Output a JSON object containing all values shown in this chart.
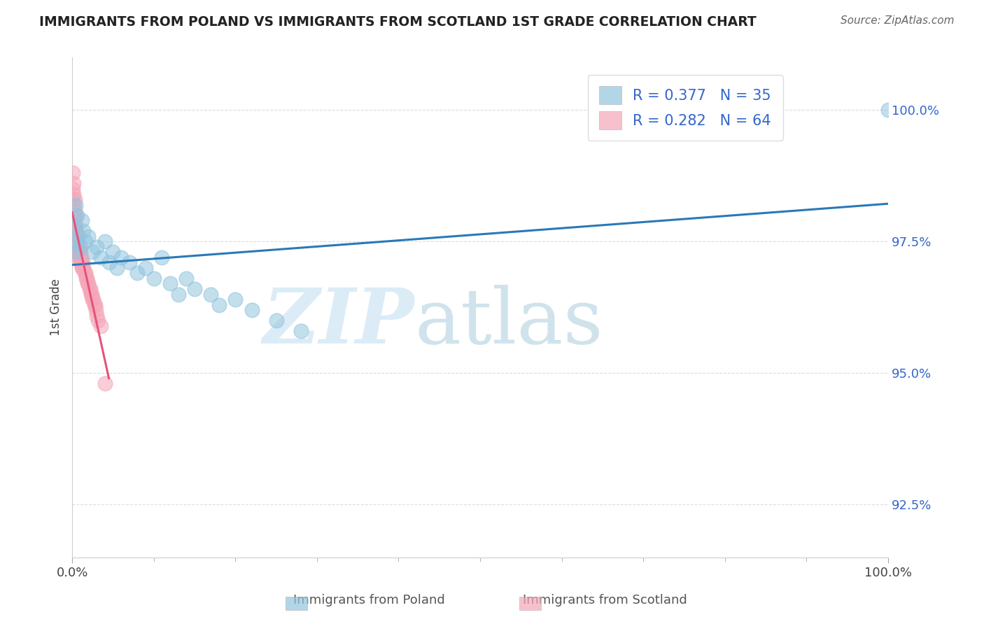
{
  "title": "IMMIGRANTS FROM POLAND VS IMMIGRANTS FROM SCOTLAND 1ST GRADE CORRELATION CHART",
  "source": "Source: ZipAtlas.com",
  "ylabel": "1st Grade",
  "poland_R": "R = 0.377",
  "poland_N": "N = 35",
  "scotland_R": "R = 0.282",
  "scotland_N": "N = 64",
  "poland_color": "#92c5de",
  "scotland_color": "#f4a6b8",
  "poland_line_color": "#2979b9",
  "scotland_line_color": "#e8527a",
  "legend_poland": "Immigrants from Poland",
  "legend_scotland": "Immigrants from Scotland",
  "poland_scatter_x": [
    0.2,
    0.3,
    0.4,
    0.5,
    0.6,
    0.8,
    1.0,
    1.2,
    1.4,
    1.6,
    2.0,
    2.5,
    3.0,
    3.5,
    4.0,
    4.5,
    5.0,
    5.5,
    6.0,
    7.0,
    8.0,
    9.0,
    10.0,
    11.0,
    12.0,
    13.0,
    14.0,
    15.0,
    17.0,
    18.0,
    20.0,
    22.0,
    25.0,
    28.0,
    100.0
  ],
  "poland_scatter_y": [
    97.5,
    97.8,
    98.2,
    97.3,
    98.0,
    97.6,
    97.4,
    97.9,
    97.7,
    97.5,
    97.6,
    97.3,
    97.4,
    97.2,
    97.5,
    97.1,
    97.3,
    97.0,
    97.2,
    97.1,
    96.9,
    97.0,
    96.8,
    97.2,
    96.7,
    96.5,
    96.8,
    96.6,
    96.5,
    96.3,
    96.4,
    96.2,
    96.0,
    95.8,
    100.0
  ],
  "scotland_scatter_x": [
    0.1,
    0.1,
    0.1,
    0.2,
    0.2,
    0.2,
    0.2,
    0.3,
    0.3,
    0.3,
    0.3,
    0.3,
    0.3,
    0.3,
    0.4,
    0.4,
    0.4,
    0.4,
    0.4,
    0.4,
    0.5,
    0.5,
    0.5,
    0.5,
    0.6,
    0.6,
    0.6,
    0.7,
    0.7,
    0.7,
    0.8,
    0.8,
    0.8,
    0.9,
    0.9,
    1.0,
    1.0,
    1.0,
    1.1,
    1.1,
    1.2,
    1.2,
    1.3,
    1.3,
    1.4,
    1.5,
    1.6,
    1.7,
    1.8,
    1.9,
    2.0,
    2.1,
    2.2,
    2.3,
    2.4,
    2.5,
    2.6,
    2.7,
    2.8,
    2.9,
    3.0,
    3.2,
    3.5,
    4.0
  ],
  "scotland_scatter_y": [
    98.8,
    98.5,
    98.3,
    98.6,
    98.4,
    98.2,
    98.0,
    98.3,
    98.1,
    97.9,
    97.8,
    97.7,
    97.6,
    97.5,
    98.0,
    97.8,
    97.7,
    97.6,
    97.5,
    97.4,
    97.7,
    97.6,
    97.5,
    97.4,
    97.6,
    97.5,
    97.4,
    97.5,
    97.4,
    97.3,
    97.4,
    97.3,
    97.2,
    97.3,
    97.2,
    97.3,
    97.2,
    97.1,
    97.2,
    97.1,
    97.1,
    97.0,
    97.1,
    97.0,
    97.0,
    96.9,
    96.9,
    96.8,
    96.8,
    96.7,
    96.7,
    96.6,
    96.6,
    96.5,
    96.5,
    96.4,
    96.4,
    96.3,
    96.3,
    96.2,
    96.1,
    96.0,
    95.9,
    94.8
  ],
  "xlim": [
    0.0,
    100.0
  ],
  "ylim": [
    91.5,
    101.0
  ],
  "yticks": [
    92.5,
    95.0,
    97.5,
    100.0
  ],
  "xticks": [
    0.0,
    100.0
  ],
  "x_tick_labels": [
    "0.0%",
    "100.0%"
  ],
  "y_tick_labels": [
    "92.5%",
    "95.0%",
    "97.5%",
    "100.0%"
  ]
}
